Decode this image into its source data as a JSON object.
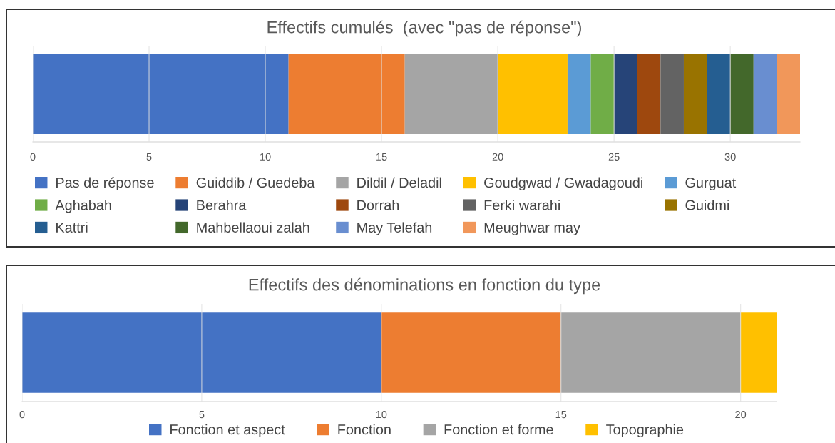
{
  "chart_data": [
    {
      "type": "bar",
      "orientation": "horizontal",
      "stacked": true,
      "title": "Effectifs cumulés  (avec \"pas de réponse\")",
      "categories": [
        null
      ],
      "series": [
        {
          "name": "Pas de réponse",
          "color": "#4472c4",
          "values": [
            11
          ]
        },
        {
          "name": "Guiddib / Guedeba",
          "color": "#ed7d31",
          "values": [
            5
          ]
        },
        {
          "name": "Dildil / Deladil",
          "color": "#a5a5a5",
          "values": [
            4
          ]
        },
        {
          "name": "Goudgwad / Gwadagoudi",
          "color": "#ffc000",
          "values": [
            3
          ]
        },
        {
          "name": "Gurguat",
          "color": "#5b9bd5",
          "values": [
            1
          ]
        },
        {
          "name": "Aghabah",
          "color": "#70ad47",
          "values": [
            1
          ]
        },
        {
          "name": "Berahra",
          "color": "#264478",
          "values": [
            1
          ]
        },
        {
          "name": "Dorrah",
          "color": "#9e480e",
          "values": [
            1
          ]
        },
        {
          "name": "Ferki warahi",
          "color": "#636363",
          "values": [
            1
          ]
        },
        {
          "name": "Guidmi",
          "color": "#997300",
          "values": [
            1
          ]
        },
        {
          "name": "Kattri",
          "color": "#255e91",
          "values": [
            1
          ]
        },
        {
          "name": "Mahbellaoui zalah",
          "color": "#43682b",
          "values": [
            1
          ]
        },
        {
          "name": "May Telefah",
          "color": "#698ed0",
          "values": [
            1
          ]
        },
        {
          "name": "Meughwar may",
          "color": "#f1975a",
          "values": [
            1
          ]
        }
      ],
      "xlim": [
        0,
        33
      ],
      "xticks": [
        0,
        5,
        10,
        15,
        20,
        25,
        30
      ],
      "grid": "x",
      "legend": "bottom"
    },
    {
      "type": "bar",
      "orientation": "horizontal",
      "stacked": true,
      "title": "Effectifs des dénominations en fonction du type",
      "categories": [
        null
      ],
      "series": [
        {
          "name": "Fonction et aspect",
          "color": "#4472c4",
          "values": [
            10
          ]
        },
        {
          "name": "Fonction",
          "color": "#ed7d31",
          "values": [
            5
          ]
        },
        {
          "name": "Fonction et forme",
          "color": "#a5a5a5",
          "values": [
            5
          ]
        },
        {
          "name": "Topographie",
          "color": "#ffc000",
          "values": [
            1
          ]
        }
      ],
      "xlim": [
        0,
        21
      ],
      "xticks": [
        0,
        5,
        10,
        15,
        20
      ],
      "grid": "x",
      "legend": "bottom"
    }
  ]
}
